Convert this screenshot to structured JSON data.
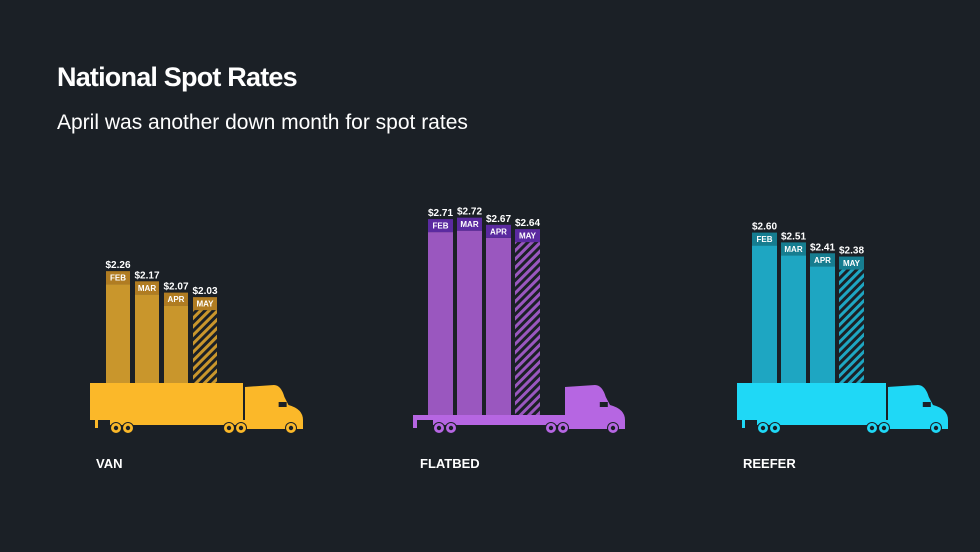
{
  "title": "National Spot Rates",
  "subtitle": "April was another down month for spot rates",
  "chart_data": [
    {
      "type": "bar",
      "label": "VAN",
      "categories": [
        "FEB",
        "MAR",
        "APR",
        "MAY"
      ],
      "values": [
        2.26,
        2.17,
        2.07,
        2.03
      ],
      "value_labels": [
        "$2.26",
        "$2.17",
        "$2.07",
        "$2.03"
      ],
      "hatched": "MAY",
      "colors": {
        "bar": "#c9962c",
        "band": "#b07c22",
        "truck": "#fbb829"
      }
    },
    {
      "type": "bar",
      "label": "FLATBED",
      "categories": [
        "FEB",
        "MAR",
        "APR",
        "MAY"
      ],
      "values": [
        2.71,
        2.72,
        2.67,
        2.64
      ],
      "value_labels": [
        "$2.71",
        "$2.72",
        "$2.67",
        "$2.64"
      ],
      "hatched": "MAY",
      "colors": {
        "bar": "#9a57bf",
        "band": "#5b2aa0",
        "truck": "#b666e2"
      }
    },
    {
      "type": "bar",
      "label": "REEFER",
      "categories": [
        "FEB",
        "MAR",
        "APR",
        "MAY"
      ],
      "values": [
        2.6,
        2.51,
        2.41,
        2.38
      ],
      "value_labels": [
        "$2.60",
        "$2.51",
        "$2.41",
        "$2.38"
      ],
      "hatched": "MAY",
      "colors": {
        "bar": "#1ea6c2",
        "band": "#167d90",
        "truck": "#1fd8f6"
      }
    }
  ]
}
